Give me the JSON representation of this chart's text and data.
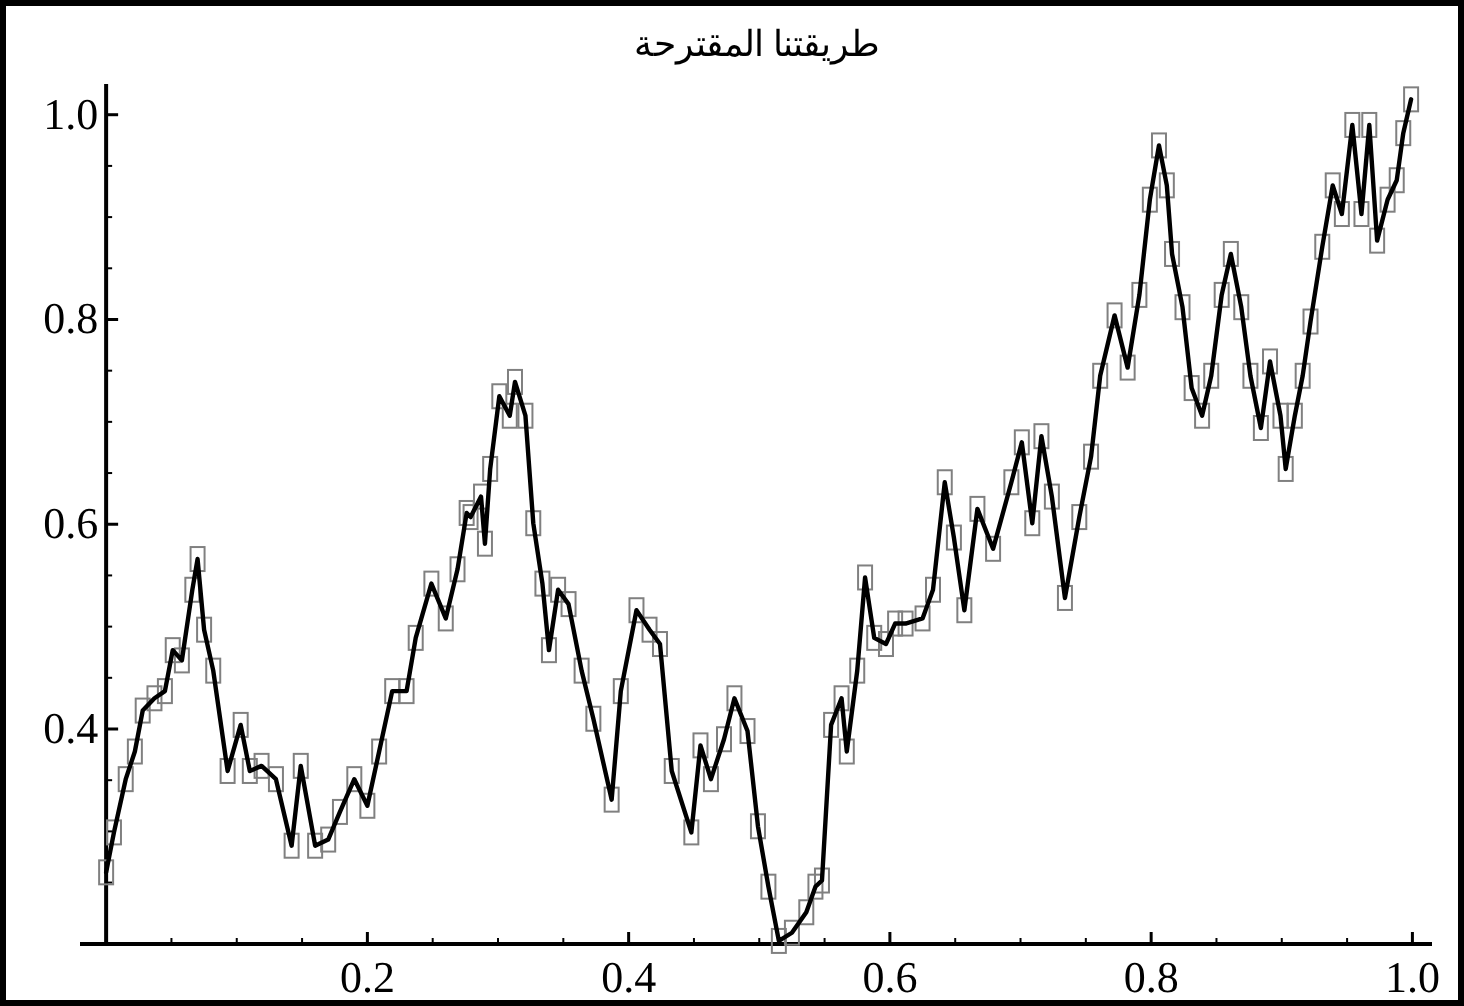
{
  "chart_data": {
    "type": "line",
    "title": "طريقتنا المقترحة",
    "grid": false,
    "xlim": [
      -0.02,
      1.015
    ],
    "ylim": [
      0.19,
      1.03
    ],
    "xticks": [
      {
        "value": 0.05,
        "label": null
      },
      {
        "value": 0.1,
        "label": null
      },
      {
        "value": 0.15,
        "label": null
      },
      {
        "value": 0.2,
        "label": "0.2"
      },
      {
        "value": 0.25,
        "label": null
      },
      {
        "value": 0.3,
        "label": null
      },
      {
        "value": 0.35,
        "label": null
      },
      {
        "value": 0.4,
        "label": "0.4"
      },
      {
        "value": 0.45,
        "label": null
      },
      {
        "value": 0.5,
        "label": null
      },
      {
        "value": 0.55,
        "label": null
      },
      {
        "value": 0.6,
        "label": "0.6"
      },
      {
        "value": 0.65,
        "label": null
      },
      {
        "value": 0.7,
        "label": null
      },
      {
        "value": 0.75,
        "label": null
      },
      {
        "value": 0.8,
        "label": "0.8"
      },
      {
        "value": 0.85,
        "label": null
      },
      {
        "value": 0.9,
        "label": null
      },
      {
        "value": 0.95,
        "label": null
      },
      {
        "value": 1.0,
        "label": "1.0"
      }
    ],
    "yticks": [
      {
        "value": 0.25,
        "label": null
      },
      {
        "value": 0.3,
        "label": null
      },
      {
        "value": 0.35,
        "label": null
      },
      {
        "value": 0.4,
        "label": "0.4"
      },
      {
        "value": 0.45,
        "label": null
      },
      {
        "value": 0.5,
        "label": null
      },
      {
        "value": 0.55,
        "label": null
      },
      {
        "value": 0.6,
        "label": "0.6"
      },
      {
        "value": 0.65,
        "label": null
      },
      {
        "value": 0.7,
        "label": null
      },
      {
        "value": 0.75,
        "label": null
      },
      {
        "value": 0.8,
        "label": "0.8"
      },
      {
        "value": 0.85,
        "label": null
      },
      {
        "value": 0.9,
        "label": null
      },
      {
        "value": 0.95,
        "label": null
      },
      {
        "value": 1.0,
        "label": "1.0"
      }
    ],
    "x": [
      0,
      0.006,
      0.015,
      0.022,
      0.028,
      0.037,
      0.045,
      0.051,
      0.058,
      0.066,
      0.07,
      0.075,
      0.082,
      0.093,
      0.103,
      0.11,
      0.119,
      0.13,
      0.142,
      0.149,
      0.16,
      0.17,
      0.179,
      0.19,
      0.2,
      0.209,
      0.219,
      0.23,
      0.237,
      0.249,
      0.26,
      0.269,
      0.276,
      0.279,
      0.287,
      0.29,
      0.294,
      0.301,
      0.309,
      0.313,
      0.321,
      0.327,
      0.334,
      0.339,
      0.346,
      0.354,
      0.364,
      0.373,
      0.387,
      0.394,
      0.406,
      0.416,
      0.424,
      0.433,
      0.448,
      0.455,
      0.463,
      0.473,
      0.481,
      0.491,
      0.499,
      0.507,
      0.515,
      0.525,
      0.536,
      0.543,
      0.548,
      0.555,
      0.563,
      0.567,
      0.575,
      0.581,
      0.588,
      0.597,
      0.604,
      0.612,
      0.625,
      0.633,
      0.642,
      0.649,
      0.657,
      0.667,
      0.679,
      0.693,
      0.701,
      0.709,
      0.716,
      0.724,
      0.734,
      0.745,
      0.754,
      0.761,
      0.772,
      0.782,
      0.791,
      0.799,
      0.806,
      0.812,
      0.816,
      0.824,
      0.831,
      0.839,
      0.846,
      0.854,
      0.861,
      0.869,
      0.876,
      0.884,
      0.891,
      0.899,
      0.903,
      0.91,
      0.916,
      0.922,
      0.931,
      0.939,
      0.946,
      0.954,
      0.961,
      0.967,
      0.973,
      0.981,
      0.988,
      0.993,
      0.999
    ],
    "series": [
      {
        "type": "scatter",
        "marker": "square",
        "color": "#808080",
        "values": [
          0.26,
          0.299,
          0.351,
          0.378,
          0.418,
          0.43,
          0.437,
          0.477,
          0.467,
          0.536,
          0.566,
          0.497,
          0.457,
          0.359,
          0.404,
          0.359,
          0.364,
          0.351,
          0.286,
          0.364,
          0.286,
          0.292,
          0.319,
          0.351,
          0.325,
          0.378,
          0.437,
          0.437,
          0.489,
          0.542,
          0.508,
          0.556,
          0.611,
          0.607,
          0.627,
          0.581,
          0.654,
          0.725,
          0.706,
          0.739,
          0.706,
          0.601,
          0.542,
          0.477,
          0.536,
          0.522,
          0.457,
          0.41,
          0.331,
          0.437,
          0.516,
          0.497,
          0.483,
          0.359,
          0.299,
          0.384,
          0.351,
          0.39,
          0.43,
          0.398,
          0.305,
          0.246,
          0.193,
          0.201,
          0.221,
          0.246,
          0.252,
          0.404,
          0.43,
          0.378,
          0.457,
          0.548,
          0.489,
          0.483,
          0.503,
          0.503,
          0.508,
          0.536,
          0.641,
          0.587,
          0.516,
          0.615,
          0.576,
          0.641,
          0.68,
          0.601,
          0.686,
          0.627,
          0.528,
          0.607,
          0.666,
          0.745,
          0.804,
          0.753,
          0.824,
          0.917,
          0.97,
          0.931,
          0.864,
          0.812,
          0.733,
          0.706,
          0.745,
          0.824,
          0.864,
          0.812,
          0.745,
          0.694,
          0.759,
          0.706,
          0.654,
          0.706,
          0.745,
          0.798,
          0.871,
          0.931,
          0.903,
          0.99,
          0.903,
          0.99,
          0.877,
          0.917,
          0.936,
          0.982,
          1.015
        ]
      },
      {
        "color": "#000000",
        "values": [
          0.26,
          0.299,
          0.351,
          0.378,
          0.418,
          0.43,
          0.437,
          0.477,
          0.467,
          0.536,
          0.566,
          0.497,
          0.457,
          0.359,
          0.404,
          0.359,
          0.364,
          0.351,
          0.286,
          0.364,
          0.286,
          0.292,
          0.319,
          0.351,
          0.325,
          0.378,
          0.437,
          0.437,
          0.489,
          0.542,
          0.508,
          0.556,
          0.611,
          0.607,
          0.627,
          0.581,
          0.654,
          0.725,
          0.706,
          0.739,
          0.706,
          0.601,
          0.542,
          0.477,
          0.536,
          0.522,
          0.457,
          0.41,
          0.331,
          0.437,
          0.516,
          0.497,
          0.483,
          0.359,
          0.299,
          0.384,
          0.351,
          0.39,
          0.43,
          0.398,
          0.305,
          0.246,
          0.193,
          0.201,
          0.221,
          0.246,
          0.252,
          0.404,
          0.43,
          0.378,
          0.457,
          0.548,
          0.489,
          0.483,
          0.503,
          0.503,
          0.508,
          0.536,
          0.641,
          0.587,
          0.516,
          0.615,
          0.576,
          0.641,
          0.68,
          0.601,
          0.686,
          0.627,
          0.528,
          0.607,
          0.666,
          0.745,
          0.804,
          0.753,
          0.824,
          0.917,
          0.97,
          0.931,
          0.864,
          0.812,
          0.733,
          0.706,
          0.745,
          0.824,
          0.864,
          0.812,
          0.745,
          0.694,
          0.759,
          0.706,
          0.654,
          0.706,
          0.745,
          0.798,
          0.871,
          0.931,
          0.903,
          0.99,
          0.903,
          0.99,
          0.877,
          0.917,
          0.936,
          0.982,
          1.015
        ]
      }
    ]
  }
}
